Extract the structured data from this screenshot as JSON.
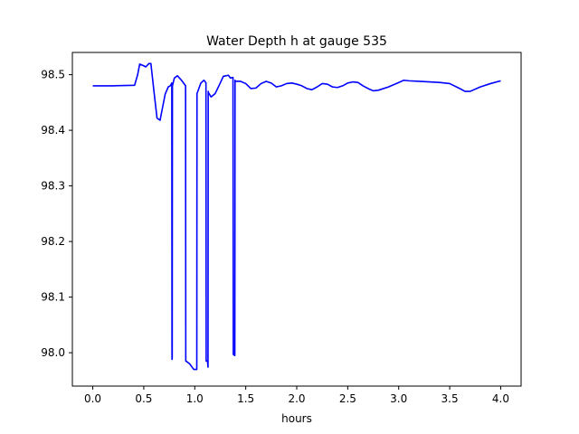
{
  "chart_data": {
    "type": "line",
    "title": "Water Depth h at gauge 535",
    "xlabel": "hours",
    "ylabel": "",
    "xlim": [
      -0.2,
      4.2
    ],
    "ylim": [
      97.94,
      98.54
    ],
    "grid": false,
    "xticks": [
      0.0,
      0.5,
      1.0,
      1.5,
      2.0,
      2.5,
      3.0,
      3.5,
      4.0
    ],
    "xtick_labels": [
      "0.0",
      "0.5",
      "1.0",
      "1.5",
      "2.0",
      "2.5",
      "3.0",
      "3.5",
      "4.0"
    ],
    "yticks": [
      98.0,
      98.1,
      98.2,
      98.3,
      98.4,
      98.5
    ],
    "ytick_labels": [
      "98.0",
      "98.1",
      "98.2",
      "98.3",
      "98.4",
      "98.5"
    ],
    "colors": {
      "line": "#0000ff"
    },
    "series": [
      {
        "x": [
          0.0,
          0.2,
          0.41,
          0.44,
          0.46,
          0.5,
          0.52,
          0.55,
          0.57,
          0.6,
          0.63,
          0.66,
          0.68,
          0.71,
          0.74,
          0.76,
          0.775,
          0.777,
          0.779,
          0.781,
          0.8,
          0.83,
          0.87,
          0.91,
          0.912,
          0.914,
          0.95,
          0.99,
          1.02,
          1.022,
          1.06,
          1.09,
          1.1,
          1.11,
          1.112,
          1.125,
          1.13,
          1.132,
          1.134,
          1.137,
          1.16,
          1.2,
          1.25,
          1.28,
          1.33,
          1.35,
          1.375,
          1.378,
          1.393,
          1.395,
          1.4,
          1.45,
          1.5,
          1.55,
          1.6,
          1.65,
          1.7,
          1.75,
          1.8,
          1.85,
          1.9,
          1.95,
          2.0,
          2.05,
          2.1,
          2.15,
          2.2,
          2.25,
          2.3,
          2.35,
          2.4,
          2.45,
          2.5,
          2.55,
          2.6,
          2.65,
          2.7,
          2.75,
          2.8,
          2.9,
          3.0,
          3.05,
          3.1,
          3.2,
          3.3,
          3.4,
          3.5,
          3.6,
          3.65,
          3.7,
          3.8,
          3.9,
          4.0
        ],
        "y": [
          98.48,
          98.48,
          98.481,
          98.5,
          98.519,
          98.516,
          98.514,
          98.52,
          98.52,
          98.47,
          98.422,
          98.418,
          98.437,
          98.465,
          98.478,
          98.48,
          98.485,
          97.988,
          97.99,
          98.48,
          98.494,
          98.498,
          98.49,
          98.48,
          97.985,
          97.985,
          97.98,
          97.97,
          97.97,
          98.466,
          98.485,
          98.49,
          98.488,
          98.485,
          97.985,
          97.985,
          97.974,
          98.47,
          98.468,
          98.467,
          98.46,
          98.466,
          98.485,
          98.497,
          98.499,
          98.494,
          98.495,
          97.997,
          97.995,
          98.49,
          98.488,
          98.488,
          98.484,
          98.475,
          98.476,
          98.484,
          98.488,
          98.485,
          98.478,
          98.48,
          98.484,
          98.485,
          98.483,
          98.48,
          98.475,
          98.473,
          98.478,
          98.484,
          98.483,
          98.478,
          98.477,
          98.48,
          98.485,
          98.487,
          98.486,
          98.48,
          98.475,
          98.471,
          98.472,
          98.478,
          98.486,
          98.49,
          98.489,
          98.488,
          98.487,
          98.486,
          98.484,
          98.475,
          98.47,
          98.47,
          98.478,
          98.484,
          98.489
        ]
      }
    ]
  }
}
